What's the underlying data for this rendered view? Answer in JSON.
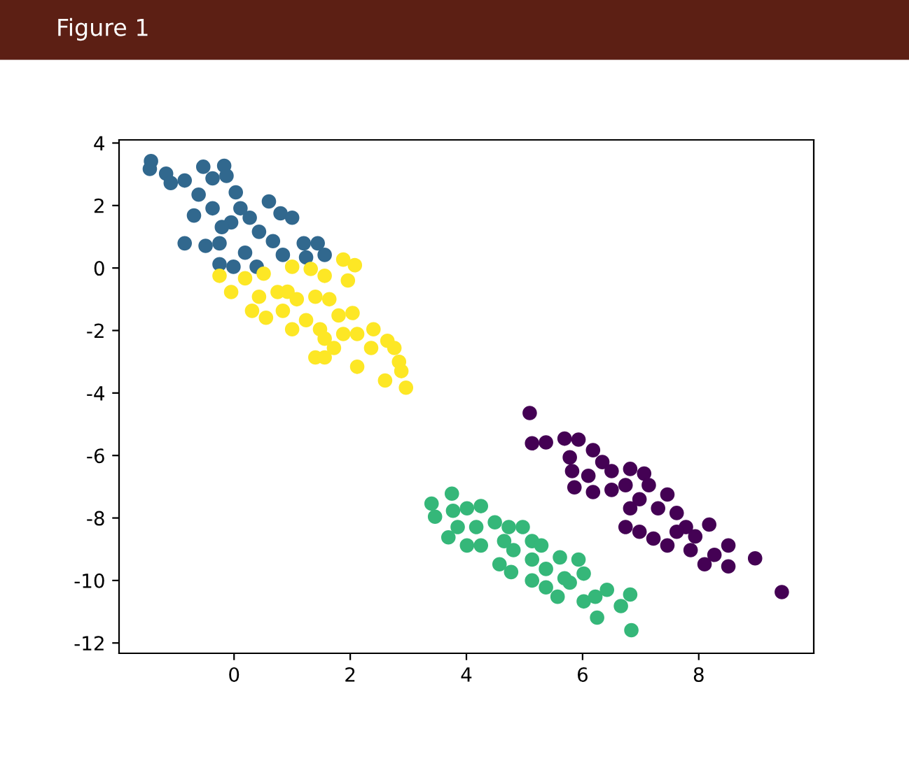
{
  "chart_data": {
    "type": "scatter",
    "title": "Figure 1",
    "marker": "circle",
    "xlim": [
      -1.98,
      9.98
    ],
    "ylim": [
      -12.33,
      4.1
    ],
    "xticks": [
      0,
      2,
      4,
      6,
      8
    ],
    "yticks": [
      -12,
      -10,
      -8,
      -6,
      -4,
      -2,
      0,
      2,
      4
    ],
    "series": [
      {
        "color": "#440154",
        "x": [
          5.09,
          5.13,
          5.37,
          5.69,
          5.93,
          6.18,
          5.78,
          6.34,
          5.82,
          6.1,
          6.5,
          6.82,
          7.06,
          5.86,
          6.18,
          6.5,
          6.74,
          7.14,
          7.46,
          6.98,
          6.82,
          7.3,
          7.62,
          6.74,
          6.98,
          7.22,
          7.46,
          7.78,
          7.94,
          8.18,
          7.86,
          8.1,
          8.51,
          8.51,
          8.27,
          8.97,
          9.43,
          7.62
        ],
        "values": [
          -4.64,
          -5.61,
          -5.58,
          -5.46,
          -5.49,
          -5.83,
          -6.06,
          -6.21,
          -6.5,
          -6.65,
          -6.5,
          -6.43,
          -6.58,
          -7.02,
          -7.17,
          -7.1,
          -6.95,
          -6.95,
          -7.25,
          -7.4,
          -7.69,
          -7.69,
          -7.84,
          -8.29,
          -8.44,
          -8.66,
          -8.88,
          -8.29,
          -8.59,
          -8.21,
          -9.03,
          -9.48,
          -8.88,
          -9.55,
          -9.18,
          -9.29,
          -10.37,
          -8.44
        ]
      },
      {
        "color": "#31688e",
        "x": [
          -1.43,
          -1.45,
          -1.17,
          -1.09,
          -0.85,
          -0.53,
          -0.17,
          -0.13,
          -0.37,
          -0.61,
          0.03,
          0.6,
          0.8,
          1.0,
          -0.69,
          -0.37,
          -0.05,
          0.27,
          0.43,
          0.67,
          -0.85,
          -0.49,
          -0.25,
          -0.25,
          -0.01,
          0.19,
          0.39,
          0.84,
          1.24,
          1.2,
          1.44,
          1.56,
          0.11,
          -0.21
        ],
        "values": [
          3.42,
          3.17,
          3.02,
          2.72,
          2.8,
          3.24,
          3.27,
          2.95,
          2.87,
          2.35,
          2.42,
          2.13,
          1.75,
          1.61,
          1.68,
          1.91,
          1.46,
          1.61,
          1.16,
          0.86,
          0.79,
          0.71,
          0.79,
          0.12,
          0.04,
          0.49,
          0.04,
          0.42,
          0.34,
          0.79,
          0.79,
          0.42,
          1.91,
          1.31
        ]
      },
      {
        "color": "#35b779",
        "x": [
          3.4,
          3.46,
          3.75,
          3.69,
          3.77,
          4.01,
          4.25,
          3.85,
          4.17,
          4.01,
          4.25,
          4.49,
          4.73,
          4.97,
          4.57,
          4.81,
          5.13,
          5.29,
          4.77,
          5.13,
          5.37,
          5.61,
          5.93,
          5.13,
          5.37,
          5.57,
          5.78,
          6.02,
          6.02,
          6.22,
          6.25,
          6.42,
          6.66,
          6.82,
          6.84,
          4.65,
          5.69
        ],
        "values": [
          -7.54,
          -7.96,
          -7.22,
          -8.62,
          -7.77,
          -7.69,
          -7.62,
          -8.29,
          -8.29,
          -8.88,
          -8.88,
          -8.14,
          -8.29,
          -8.29,
          -9.48,
          -9.03,
          -8.74,
          -8.88,
          -9.73,
          -9.33,
          -9.63,
          -9.26,
          -9.33,
          -10.0,
          -10.22,
          -10.52,
          -10.07,
          -9.78,
          -10.67,
          -10.52,
          -11.19,
          -10.3,
          -10.82,
          -10.45,
          -11.59,
          -8.74,
          -9.93
        ]
      },
      {
        "color": "#fde725",
        "x": [
          -0.25,
          -0.05,
          0.19,
          0.51,
          1.0,
          1.32,
          1.56,
          1.88,
          2.08,
          1.96,
          0.43,
          0.75,
          1.08,
          1.4,
          1.64,
          0.31,
          0.55,
          0.84,
          1.0,
          1.24,
          1.48,
          1.8,
          2.04,
          1.88,
          2.12,
          1.4,
          1.56,
          1.72,
          2.12,
          2.4,
          2.36,
          2.64,
          2.76,
          2.84,
          2.88,
          2.6,
          2.96,
          1.56,
          0.92
        ],
        "values": [
          -0.25,
          -0.77,
          -0.33,
          -0.18,
          0.04,
          -0.03,
          -0.25,
          0.27,
          0.09,
          -0.4,
          -0.92,
          -0.77,
          -1.0,
          -0.92,
          -1.0,
          -1.37,
          -1.59,
          -1.37,
          -1.96,
          -1.67,
          -1.96,
          -1.52,
          -1.44,
          -2.11,
          -2.11,
          -2.86,
          -2.86,
          -2.56,
          -3.16,
          -1.96,
          -2.56,
          -2.33,
          -2.56,
          -3.0,
          -3.3,
          -3.6,
          -3.83,
          -2.26,
          -0.76
        ]
      }
    ]
  }
}
